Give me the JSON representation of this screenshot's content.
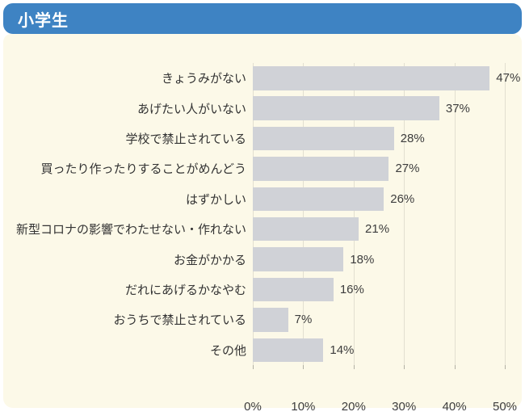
{
  "header": {
    "title": "小学生",
    "background_color": "#3e83c3",
    "text_color": "#ffffff"
  },
  "chart_data": {
    "type": "bar",
    "orientation": "horizontal",
    "title": "小学生",
    "categories": [
      "きょうみがない",
      "あげたい人がいない",
      "学校で禁止されている",
      "買ったり作ったりすることがめんどう",
      "はずかしい",
      "新型コロナの影響でわたせない・作れない",
      "お金がかかる",
      "だれにあげるかなやむ",
      "おうちで禁止されている",
      "その他"
    ],
    "values": [
      47,
      37,
      28,
      27,
      26,
      21,
      18,
      16,
      7,
      14
    ],
    "value_labels": [
      "47%",
      "37%",
      "28%",
      "27%",
      "26%",
      "21%",
      "18%",
      "16%",
      "7%",
      "14%"
    ],
    "xlabel": "",
    "ylabel": "",
    "xlim": [
      0,
      50
    ],
    "x_ticks": [
      "0%",
      "10%",
      "20%",
      "30%",
      "40%",
      "50%"
    ],
    "grid": true,
    "legend": false,
    "bar_color": "#d0d2d7",
    "plot_background_color": "#fcf9e8",
    "gridline_color": "#e2dfd0"
  }
}
